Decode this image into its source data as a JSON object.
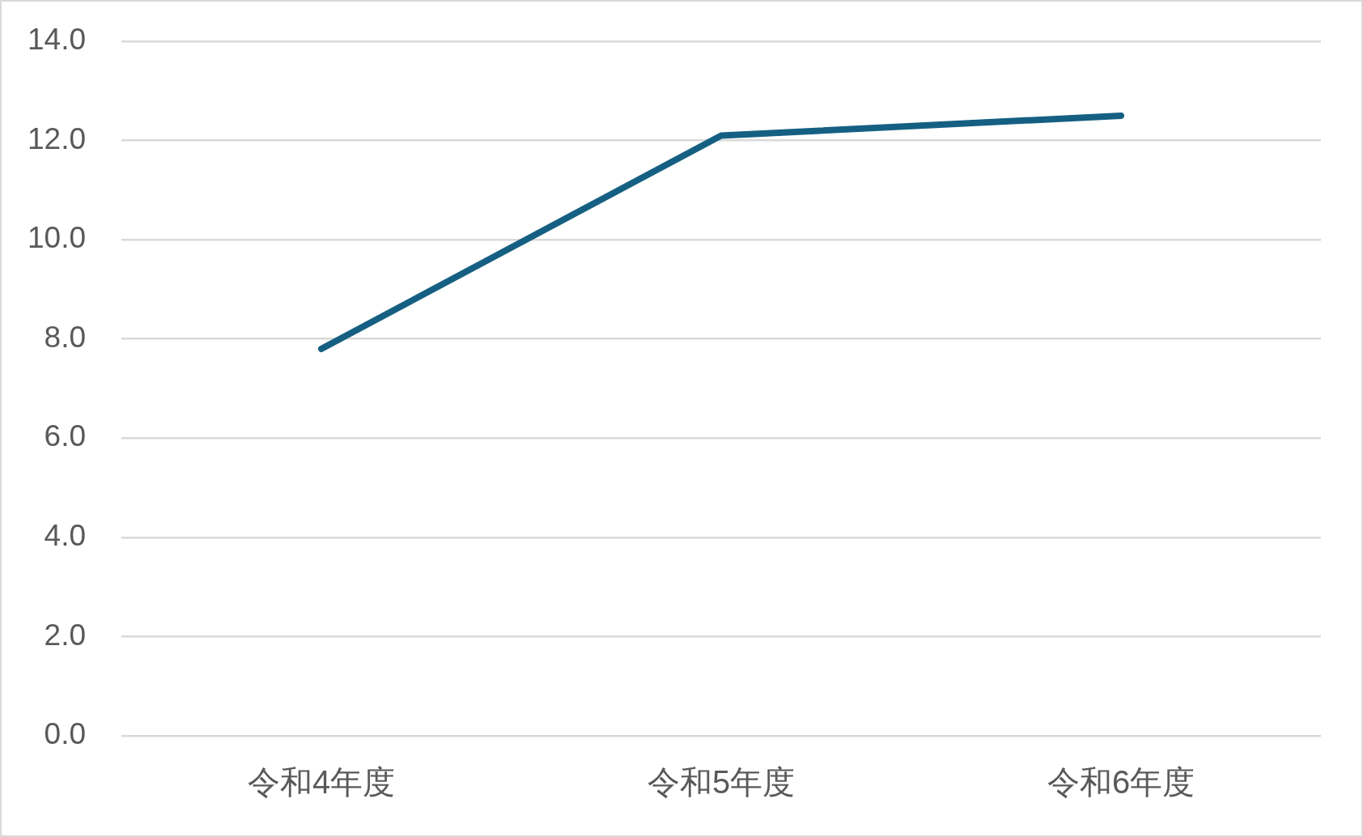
{
  "chart_data": {
    "type": "line",
    "categories": [
      "令和4年度",
      "令和5年度",
      "令和6年度"
    ],
    "series": [
      {
        "color": "#156082",
        "values": [
          7.8,
          12.1,
          12.5
        ]
      }
    ],
    "ylim": [
      0,
      14
    ],
    "yticks": [
      {
        "value": 0,
        "label": "0.0"
      },
      {
        "value": 2,
        "label": "2.0"
      },
      {
        "value": 4,
        "label": "4.0"
      },
      {
        "value": 6,
        "label": "6.0"
      },
      {
        "value": 8,
        "label": "8.0"
      },
      {
        "value": 10,
        "label": "10.0"
      },
      {
        "value": 12,
        "label": "12.0"
      },
      {
        "value": 14,
        "label": "14.0"
      }
    ],
    "grid": "y"
  }
}
